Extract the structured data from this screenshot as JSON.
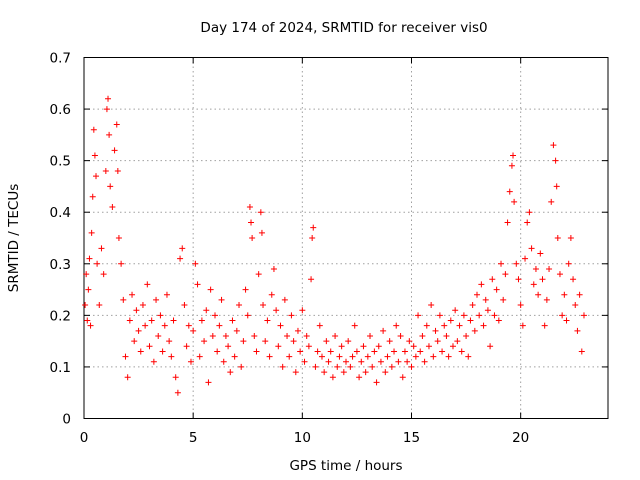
{
  "chart_data": {
    "type": "scatter",
    "title": "Day 174 of 2024, SRMTID for receiver vis0",
    "xlabel": "GPS time / hours",
    "ylabel": "SRMTID / TECUs",
    "xlim": [
      0,
      24
    ],
    "ylim": [
      0,
      0.7
    ],
    "x_ticks": [
      "0",
      "5",
      "10",
      "15",
      "20"
    ],
    "y_ticks": [
      "0",
      "0.1",
      "0.2",
      "0.3",
      "0.4",
      "0.5",
      "0.6",
      "0.7"
    ],
    "grid": true,
    "marker": "+",
    "color": "#ff0000",
    "series": [
      {
        "name": "vis0",
        "points": [
          [
            0.05,
            0.22
          ],
          [
            0.1,
            0.28
          ],
          [
            0.15,
            0.19
          ],
          [
            0.2,
            0.25
          ],
          [
            0.25,
            0.31
          ],
          [
            0.3,
            0.18
          ],
          [
            0.35,
            0.36
          ],
          [
            0.4,
            0.43
          ],
          [
            0.45,
            0.56
          ],
          [
            0.5,
            0.51
          ],
          [
            0.55,
            0.47
          ],
          [
            0.6,
            0.3
          ],
          [
            0.7,
            0.22
          ],
          [
            0.8,
            0.33
          ],
          [
            0.9,
            0.28
          ],
          [
            1.0,
            0.48
          ],
          [
            1.05,
            0.6
          ],
          [
            1.1,
            0.62
          ],
          [
            1.15,
            0.55
          ],
          [
            1.2,
            0.45
          ],
          [
            1.3,
            0.41
          ],
          [
            1.4,
            0.52
          ],
          [
            1.5,
            0.57
          ],
          [
            1.55,
            0.48
          ],
          [
            1.6,
            0.35
          ],
          [
            1.7,
            0.3
          ],
          [
            1.8,
            0.23
          ],
          [
            1.9,
            0.12
          ],
          [
            2.0,
            0.08
          ],
          [
            2.1,
            0.19
          ],
          [
            2.2,
            0.24
          ],
          [
            2.3,
            0.15
          ],
          [
            2.4,
            0.21
          ],
          [
            2.5,
            0.17
          ],
          [
            2.6,
            0.13
          ],
          [
            2.7,
            0.22
          ],
          [
            2.8,
            0.18
          ],
          [
            2.9,
            0.26
          ],
          [
            3.0,
            0.14
          ],
          [
            3.1,
            0.19
          ],
          [
            3.2,
            0.11
          ],
          [
            3.3,
            0.23
          ],
          [
            3.4,
            0.16
          ],
          [
            3.5,
            0.2
          ],
          [
            3.6,
            0.13
          ],
          [
            3.7,
            0.18
          ],
          [
            3.8,
            0.24
          ],
          [
            3.9,
            0.15
          ],
          [
            4.0,
            0.12
          ],
          [
            4.1,
            0.19
          ],
          [
            4.2,
            0.08
          ],
          [
            4.3,
            0.05
          ],
          [
            4.4,
            0.31
          ],
          [
            4.5,
            0.33
          ],
          [
            4.6,
            0.22
          ],
          [
            4.7,
            0.14
          ],
          [
            4.8,
            0.18
          ],
          [
            4.9,
            0.11
          ],
          [
            5.0,
            0.17
          ],
          [
            5.1,
            0.3
          ],
          [
            5.2,
            0.26
          ],
          [
            5.3,
            0.12
          ],
          [
            5.4,
            0.19
          ],
          [
            5.5,
            0.15
          ],
          [
            5.6,
            0.21
          ],
          [
            5.7,
            0.07
          ],
          [
            5.8,
            0.25
          ],
          [
            5.9,
            0.16
          ],
          [
            6.0,
            0.2
          ],
          [
            6.1,
            0.13
          ],
          [
            6.2,
            0.18
          ],
          [
            6.3,
            0.23
          ],
          [
            6.4,
            0.11
          ],
          [
            6.5,
            0.16
          ],
          [
            6.6,
            0.14
          ],
          [
            6.7,
            0.09
          ],
          [
            6.8,
            0.19
          ],
          [
            6.9,
            0.12
          ],
          [
            7.0,
            0.17
          ],
          [
            7.1,
            0.22
          ],
          [
            7.2,
            0.1
          ],
          [
            7.3,
            0.15
          ],
          [
            7.4,
            0.25
          ],
          [
            7.5,
            0.2
          ],
          [
            7.6,
            0.41
          ],
          [
            7.65,
            0.38
          ],
          [
            7.7,
            0.35
          ],
          [
            7.8,
            0.16
          ],
          [
            7.9,
            0.13
          ],
          [
            8.0,
            0.28
          ],
          [
            8.1,
            0.4
          ],
          [
            8.15,
            0.36
          ],
          [
            8.2,
            0.22
          ],
          [
            8.3,
            0.15
          ],
          [
            8.4,
            0.19
          ],
          [
            8.5,
            0.12
          ],
          [
            8.6,
            0.24
          ],
          [
            8.7,
            0.29
          ],
          [
            8.8,
            0.21
          ],
          [
            8.9,
            0.14
          ],
          [
            9.0,
            0.18
          ],
          [
            9.1,
            0.1
          ],
          [
            9.2,
            0.23
          ],
          [
            9.3,
            0.16
          ],
          [
            9.4,
            0.12
          ],
          [
            9.5,
            0.2
          ],
          [
            9.6,
            0.15
          ],
          [
            9.7,
            0.09
          ],
          [
            9.8,
            0.17
          ],
          [
            9.9,
            0.13
          ],
          [
            10.0,
            0.21
          ],
          [
            10.1,
            0.11
          ],
          [
            10.2,
            0.16
          ],
          [
            10.3,
            0.14
          ],
          [
            10.4,
            0.27
          ],
          [
            10.45,
            0.35
          ],
          [
            10.5,
            0.37
          ],
          [
            10.6,
            0.1
          ],
          [
            10.7,
            0.13
          ],
          [
            10.8,
            0.18
          ],
          [
            10.9,
            0.12
          ],
          [
            11.0,
            0.09
          ],
          [
            11.1,
            0.15
          ],
          [
            11.2,
            0.11
          ],
          [
            11.3,
            0.13
          ],
          [
            11.4,
            0.08
          ],
          [
            11.5,
            0.16
          ],
          [
            11.6,
            0.1
          ],
          [
            11.7,
            0.12
          ],
          [
            11.8,
            0.14
          ],
          [
            11.9,
            0.09
          ],
          [
            12.0,
            0.11
          ],
          [
            12.1,
            0.15
          ],
          [
            12.2,
            0.1
          ],
          [
            12.3,
            0.12
          ],
          [
            12.4,
            0.18
          ],
          [
            12.5,
            0.13
          ],
          [
            12.6,
            0.08
          ],
          [
            12.7,
            0.11
          ],
          [
            12.8,
            0.14
          ],
          [
            12.9,
            0.09
          ],
          [
            13.0,
            0.12
          ],
          [
            13.1,
            0.16
          ],
          [
            13.2,
            0.1
          ],
          [
            13.3,
            0.13
          ],
          [
            13.4,
            0.07
          ],
          [
            13.5,
            0.14
          ],
          [
            13.6,
            0.11
          ],
          [
            13.7,
            0.17
          ],
          [
            13.8,
            0.09
          ],
          [
            13.9,
            0.12
          ],
          [
            14.0,
            0.15
          ],
          [
            14.1,
            0.1
          ],
          [
            14.2,
            0.13
          ],
          [
            14.3,
            0.18
          ],
          [
            14.4,
            0.11
          ],
          [
            14.5,
            0.16
          ],
          [
            14.6,
            0.08
          ],
          [
            14.7,
            0.13
          ],
          [
            14.8,
            0.11
          ],
          [
            14.9,
            0.15
          ],
          [
            15.0,
            0.1
          ],
          [
            15.1,
            0.14
          ],
          [
            15.2,
            0.12
          ],
          [
            15.3,
            0.2
          ],
          [
            15.4,
            0.13
          ],
          [
            15.5,
            0.16
          ],
          [
            15.6,
            0.11
          ],
          [
            15.7,
            0.18
          ],
          [
            15.8,
            0.14
          ],
          [
            15.9,
            0.22
          ],
          [
            16.0,
            0.12
          ],
          [
            16.1,
            0.17
          ],
          [
            16.2,
            0.15
          ],
          [
            16.3,
            0.2
          ],
          [
            16.4,
            0.13
          ],
          [
            16.5,
            0.18
          ],
          [
            16.6,
            0.16
          ],
          [
            16.7,
            0.12
          ],
          [
            16.8,
            0.19
          ],
          [
            16.9,
            0.14
          ],
          [
            17.0,
            0.21
          ],
          [
            17.1,
            0.15
          ],
          [
            17.2,
            0.18
          ],
          [
            17.3,
            0.13
          ],
          [
            17.4,
            0.2
          ],
          [
            17.5,
            0.16
          ],
          [
            17.6,
            0.12
          ],
          [
            17.7,
            0.19
          ],
          [
            17.8,
            0.22
          ],
          [
            17.9,
            0.17
          ],
          [
            18.0,
            0.24
          ],
          [
            18.1,
            0.2
          ],
          [
            18.2,
            0.26
          ],
          [
            18.3,
            0.18
          ],
          [
            18.4,
            0.23
          ],
          [
            18.5,
            0.21
          ],
          [
            18.6,
            0.14
          ],
          [
            18.7,
            0.27
          ],
          [
            18.8,
            0.2
          ],
          [
            18.9,
            0.25
          ],
          [
            19.0,
            0.19
          ],
          [
            19.1,
            0.3
          ],
          [
            19.2,
            0.23
          ],
          [
            19.3,
            0.28
          ],
          [
            19.4,
            0.38
          ],
          [
            19.5,
            0.44
          ],
          [
            19.6,
            0.49
          ],
          [
            19.65,
            0.51
          ],
          [
            19.7,
            0.42
          ],
          [
            19.8,
            0.3
          ],
          [
            19.9,
            0.27
          ],
          [
            20.0,
            0.22
          ],
          [
            20.1,
            0.18
          ],
          [
            20.2,
            0.31
          ],
          [
            20.3,
            0.38
          ],
          [
            20.4,
            0.4
          ],
          [
            20.5,
            0.33
          ],
          [
            20.6,
            0.26
          ],
          [
            20.7,
            0.29
          ],
          [
            20.8,
            0.24
          ],
          [
            20.9,
            0.32
          ],
          [
            21.0,
            0.27
          ],
          [
            21.1,
            0.18
          ],
          [
            21.2,
            0.23
          ],
          [
            21.3,
            0.29
          ],
          [
            21.4,
            0.42
          ],
          [
            21.5,
            0.53
          ],
          [
            21.6,
            0.5
          ],
          [
            21.65,
            0.45
          ],
          [
            21.7,
            0.35
          ],
          [
            21.8,
            0.28
          ],
          [
            21.9,
            0.2
          ],
          [
            22.0,
            0.24
          ],
          [
            22.1,
            0.19
          ],
          [
            22.2,
            0.3
          ],
          [
            22.3,
            0.35
          ],
          [
            22.4,
            0.27
          ],
          [
            22.5,
            0.22
          ],
          [
            22.6,
            0.17
          ],
          [
            22.7,
            0.24
          ],
          [
            22.8,
            0.13
          ],
          [
            22.9,
            0.2
          ]
        ]
      }
    ]
  }
}
